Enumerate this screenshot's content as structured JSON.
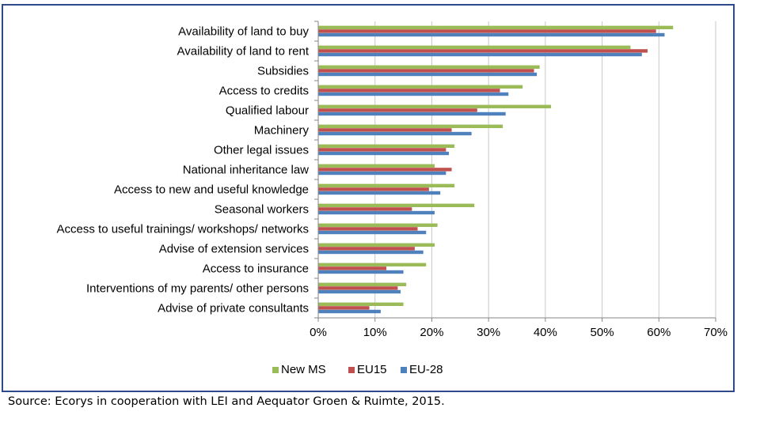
{
  "chart_data": {
    "type": "bar",
    "orientation": "horizontal",
    "categories": [
      "Availability of land to buy",
      "Availability of land to rent",
      "Subsidies",
      "Access to credits",
      "Qualified labour",
      "Machinery",
      "Other legal issues",
      "National inheritance law",
      "Access to new and useful knowledge",
      "Seasonal workers",
      "Access to useful trainings/ workshops/ networks",
      "Advise of extension services",
      "Access to insurance",
      "Interventions of my parents/ other persons",
      "Advise of private consultants"
    ],
    "series": [
      {
        "name": "New MS",
        "color": "#9bbb59",
        "values": [
          62.5,
          55,
          39,
          36,
          41,
          32.5,
          24,
          20.5,
          24,
          27.5,
          21,
          20.5,
          19,
          15.5,
          15
        ]
      },
      {
        "name": "EU15",
        "color": "#c0504d",
        "values": [
          59.5,
          58,
          38,
          32,
          28,
          23.5,
          22.5,
          23.5,
          19.5,
          16.5,
          17.5,
          17,
          12,
          14,
          9
        ]
      },
      {
        "name": "EU-28",
        "color": "#4f81bd",
        "values": [
          61,
          57,
          38.5,
          33.5,
          33,
          27,
          23,
          22.5,
          21.5,
          20.5,
          19,
          18.5,
          15,
          14.5,
          11
        ]
      }
    ],
    "xlim": [
      0,
      70
    ],
    "xticks": [
      0,
      10,
      20,
      30,
      40,
      50,
      60,
      70
    ],
    "xtick_labels": [
      "0%",
      "10%",
      "20%",
      "30%",
      "40%",
      "50%",
      "60%",
      "70%"
    ],
    "grid": "vertical",
    "legend_position": "bottom"
  },
  "source": "Source: Ecorys in cooperation with LEI and Aequator Groen & Ruimte, 2015."
}
